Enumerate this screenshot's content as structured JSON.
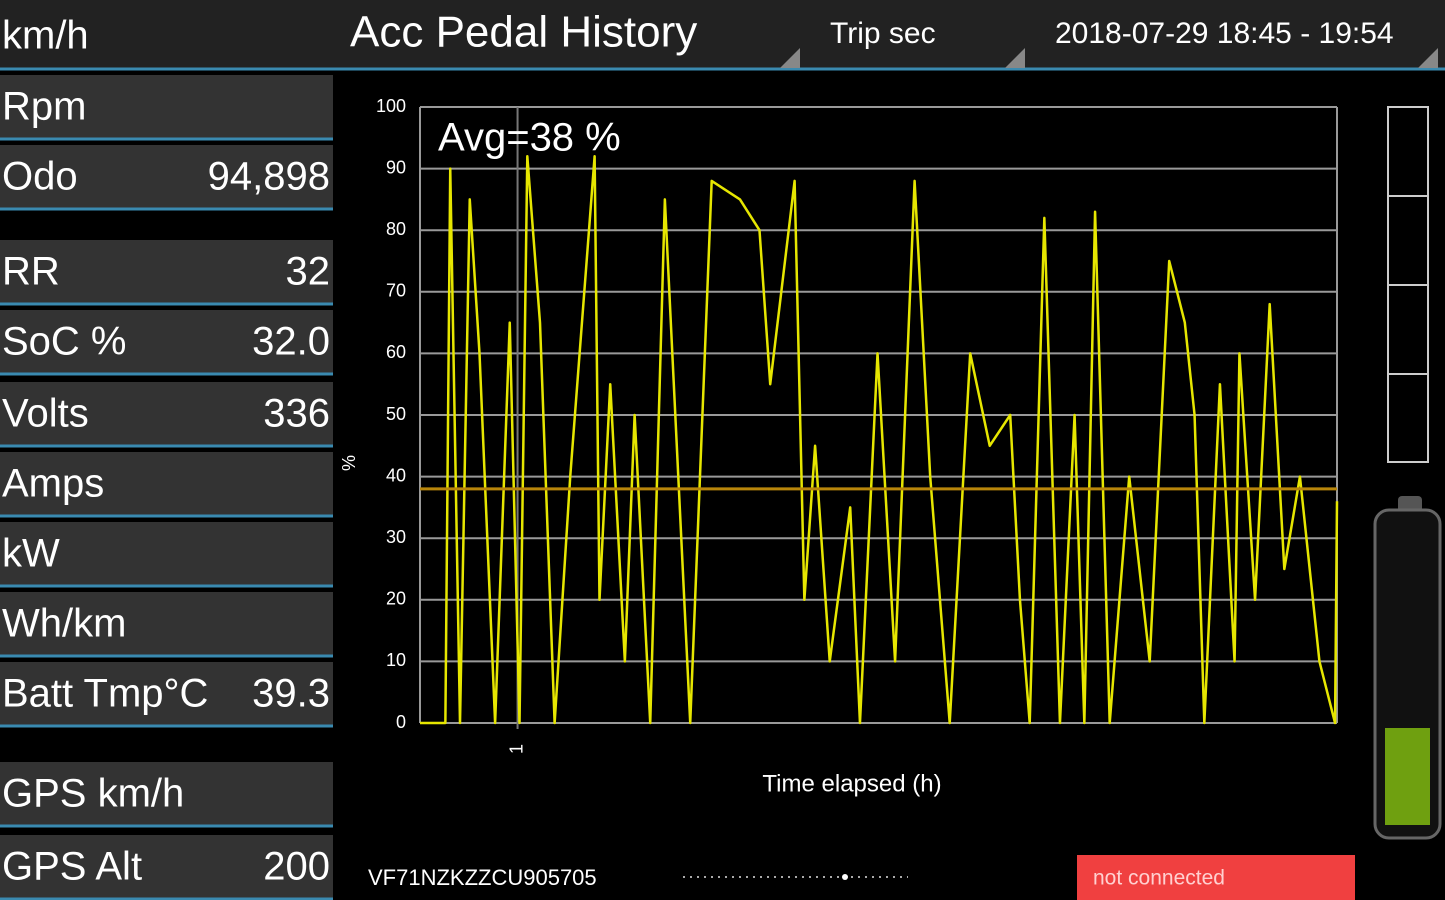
{
  "header": {
    "unit": "km/h",
    "title": "Acc Pedal History",
    "mode": "Trip sec",
    "range": "2018-07-29 18:45 - 19:54"
  },
  "panel": [
    {
      "label": "Rpm"
    },
    {
      "label": "Odo",
      "value": "94,898"
    },
    {
      "label": "RR",
      "value": "32"
    },
    {
      "label": "SoC %",
      "value": "32.0"
    },
    {
      "label": "Volts",
      "value": "336"
    },
    {
      "label": "Amps"
    },
    {
      "label": "kW"
    },
    {
      "label": "Wh/km"
    },
    {
      "label": "Batt Tmp°C",
      "value": "39.3"
    },
    {
      "label": "GPS km/h"
    },
    {
      "label": "GPS Alt",
      "value": "200"
    }
  ],
  "chart_data": {
    "type": "line",
    "y_label": "%",
    "x_label": "Time elapsed (h)",
    "annotation": "Avg=38 %",
    "average": 38,
    "average_color": "#b8860b",
    "xlim": [
      0,
      9.4
    ],
    "xticks": [
      1
    ],
    "ylim": [
      0,
      100
    ],
    "yticks": [
      0,
      10,
      20,
      30,
      40,
      50,
      60,
      70,
      80,
      90,
      100
    ],
    "grid": true,
    "series": [
      {
        "color": "#e6e600",
        "x": [
          0,
          0.26,
          0.31,
          0.41,
          0.51,
          0.61,
          0.77,
          0.92,
          1.02,
          1.1,
          1.23,
          1.38,
          1.54,
          1.79,
          1.84,
          1.95,
          2.1,
          2.2,
          2.36,
          2.51,
          2.77,
          2.99,
          3.28,
          3.48,
          3.59,
          3.84,
          3.94,
          4.05,
          4.2,
          4.41,
          4.51,
          4.69,
          4.87,
          5.07,
          5.23,
          5.43,
          5.64,
          5.84,
          6.05,
          6.15,
          6.25,
          6.4,
          6.56,
          6.71,
          6.81,
          6.92,
          7.07,
          7.27,
          7.48,
          7.68,
          7.84,
          7.94,
          8.04,
          8.2,
          8.35,
          8.4,
          8.56,
          8.71,
          8.86,
          9.02,
          9.22,
          9.38,
          9.4
        ],
        "values": [
          0,
          0,
          90,
          0,
          85,
          60,
          0,
          65,
          0,
          92,
          65,
          0,
          40,
          92,
          20,
          55,
          10,
          50,
          0,
          85,
          0,
          88,
          85,
          80,
          55,
          88,
          20,
          45,
          10,
          35,
          0,
          60,
          10,
          88,
          40,
          0,
          60,
          45,
          50,
          20,
          0,
          82,
          0,
          50,
          0,
          83,
          0,
          40,
          10,
          75,
          65,
          50,
          0,
          55,
          10,
          60,
          20,
          68,
          25,
          40,
          10,
          0,
          36
        ]
      }
    ]
  },
  "footer": {
    "vin": "VF71NZKZZCU905705",
    "status": "not connected"
  }
}
